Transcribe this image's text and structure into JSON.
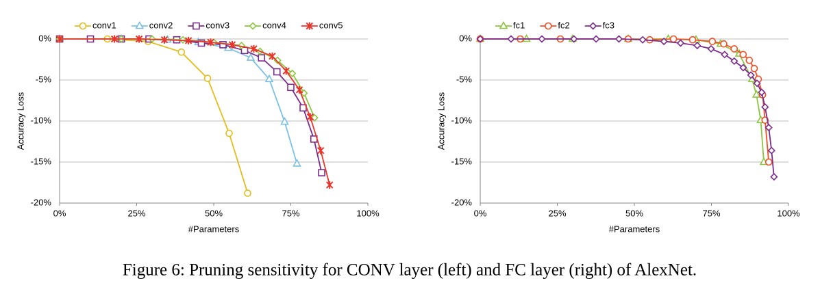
{
  "chart_data": [
    {
      "type": "line",
      "xlabel": "#Parameters",
      "ylabel": "Accuracy Loss",
      "xlim": [
        0,
        100
      ],
      "ylim": [
        -20,
        0
      ],
      "xticks": [
        {
          "value": 0,
          "label": "0%"
        },
        {
          "value": 25,
          "label": "25%"
        },
        {
          "value": 50,
          "label": "50%"
        },
        {
          "value": 75,
          "label": "75%"
        },
        {
          "value": 100,
          "label": "100%"
        }
      ],
      "yticks": [
        {
          "value": 0,
          "label": "0%"
        },
        {
          "value": -5,
          "label": "-5%"
        },
        {
          "value": -10,
          "label": "-10%"
        },
        {
          "value": -15,
          "label": "-15%"
        },
        {
          "value": -20,
          "label": "-20%"
        }
      ],
      "grid": true,
      "legend": "top",
      "series": [
        {
          "name": "conv1",
          "color": "#e3bd1b",
          "marker": "circle",
          "x": [
            0,
            15.5,
            28.7,
            39.5,
            48,
            55,
            61
          ],
          "values": [
            0,
            0,
            -0.3,
            -1.6,
            -4.8,
            -11.5,
            -18.8
          ]
        },
        {
          "name": "conv2",
          "color": "#7cc0e4",
          "marker": "triangle",
          "x": [
            0,
            20,
            35,
            45,
            54.7,
            62,
            68,
            73,
            77
          ],
          "values": [
            0,
            0,
            -0.1,
            -0.4,
            -1.1,
            -2.3,
            -4.9,
            -10.1,
            -15.2
          ]
        },
        {
          "name": "conv3",
          "color": "#7b2c8c",
          "marker": "square",
          "x": [
            0,
            10,
            20,
            29,
            38,
            46,
            53,
            60,
            65.5,
            70.5,
            75,
            79,
            82.5,
            85
          ],
          "values": [
            0,
            0,
            0,
            0,
            -0.1,
            -0.5,
            -0.7,
            -1.4,
            -2.3,
            -4,
            -5.9,
            -8.4,
            -12.2,
            -16.3
          ]
        },
        {
          "name": "conv4",
          "color": "#8cc63f",
          "marker": "diamond",
          "x": [
            0,
            20,
            30,
            40,
            50,
            59,
            65,
            70.7,
            75.5,
            79.3,
            82.7
          ],
          "values": [
            0,
            0,
            0,
            -0.1,
            -0.4,
            -0.8,
            -1.5,
            -2.6,
            -4.2,
            -6.6,
            -9.6
          ]
        },
        {
          "name": "conv5",
          "color": "#e8352b",
          "marker": "x",
          "x": [
            0,
            17.8,
            25.8,
            34,
            41.8,
            49,
            56,
            63,
            69,
            73.5,
            77.8,
            81.3,
            84.7,
            87.6
          ],
          "values": [
            0,
            0,
            0,
            -0.1,
            -0.2,
            -0.4,
            -0.7,
            -1.2,
            -2.1,
            -3.9,
            -6.2,
            -9.5,
            -13.6,
            -17.8
          ]
        }
      ]
    },
    {
      "type": "line",
      "xlabel": "#Parameters",
      "ylabel": "Accuracy Loss",
      "xlim": [
        0,
        100
      ],
      "ylim": [
        -20,
        0
      ],
      "xticks": [
        {
          "value": 0,
          "label": "0%"
        },
        {
          "value": 25,
          "label": "25%"
        },
        {
          "value": 50,
          "label": "50%"
        },
        {
          "value": 75,
          "label": "75%"
        },
        {
          "value": 100,
          "label": "100%"
        }
      ],
      "yticks": [
        {
          "value": 0,
          "label": "0%"
        },
        {
          "value": -5,
          "label": "-5%"
        },
        {
          "value": -10,
          "label": "-10%"
        },
        {
          "value": -15,
          "label": "-15%"
        },
        {
          "value": -20,
          "label": "-20%"
        }
      ],
      "grid": true,
      "legend": "top",
      "series": [
        {
          "name": "fc1",
          "color": "#8cc63f",
          "marker": "triangle",
          "x": [
            0,
            15,
            30,
            48,
            61,
            70,
            78,
            84,
            88.2,
            89.6,
            91,
            92
          ],
          "values": [
            0,
            0,
            0,
            0,
            0,
            -0.1,
            -0.6,
            -1.8,
            -4.9,
            -6.8,
            -9.9,
            -15
          ]
        },
        {
          "name": "fc2",
          "color": "#f04e23",
          "marker": "circle",
          "x": [
            0,
            13,
            26,
            48,
            55,
            62.7,
            68.9,
            75.3,
            79,
            82.4,
            85.3,
            87.3,
            88.9,
            90.2,
            91.6,
            92.4,
            93.6
          ],
          "values": [
            0,
            0,
            0,
            0,
            -0.1,
            0,
            -0.1,
            -0.3,
            -0.6,
            -1.2,
            -1.9,
            -2.6,
            -3.6,
            -4.9,
            -6.8,
            -9.9,
            -15
          ]
        },
        {
          "name": "fc3",
          "color": "#7b2c8c",
          "marker": "diamond",
          "x": [
            0,
            10,
            20,
            30.4,
            37.6,
            45,
            52.7,
            59.6,
            65,
            70.4,
            74.9,
            79.3,
            82.4,
            85.3,
            87.8,
            89.8,
            91.3,
            92.4,
            93.6,
            94.5,
            95.3
          ],
          "values": [
            0,
            0,
            0,
            0,
            0,
            0,
            -0.1,
            -0.3,
            -0.5,
            -0.8,
            -1.2,
            -1.9,
            -2.7,
            -3.5,
            -4.4,
            -5.4,
            -6.5,
            -8.3,
            -10.8,
            -13.6,
            -16.8
          ]
        }
      ]
    }
  ],
  "caption": "Figure 6: Pruning sensitivity for CONV layer (left) and FC layer (right) of AlexNet."
}
